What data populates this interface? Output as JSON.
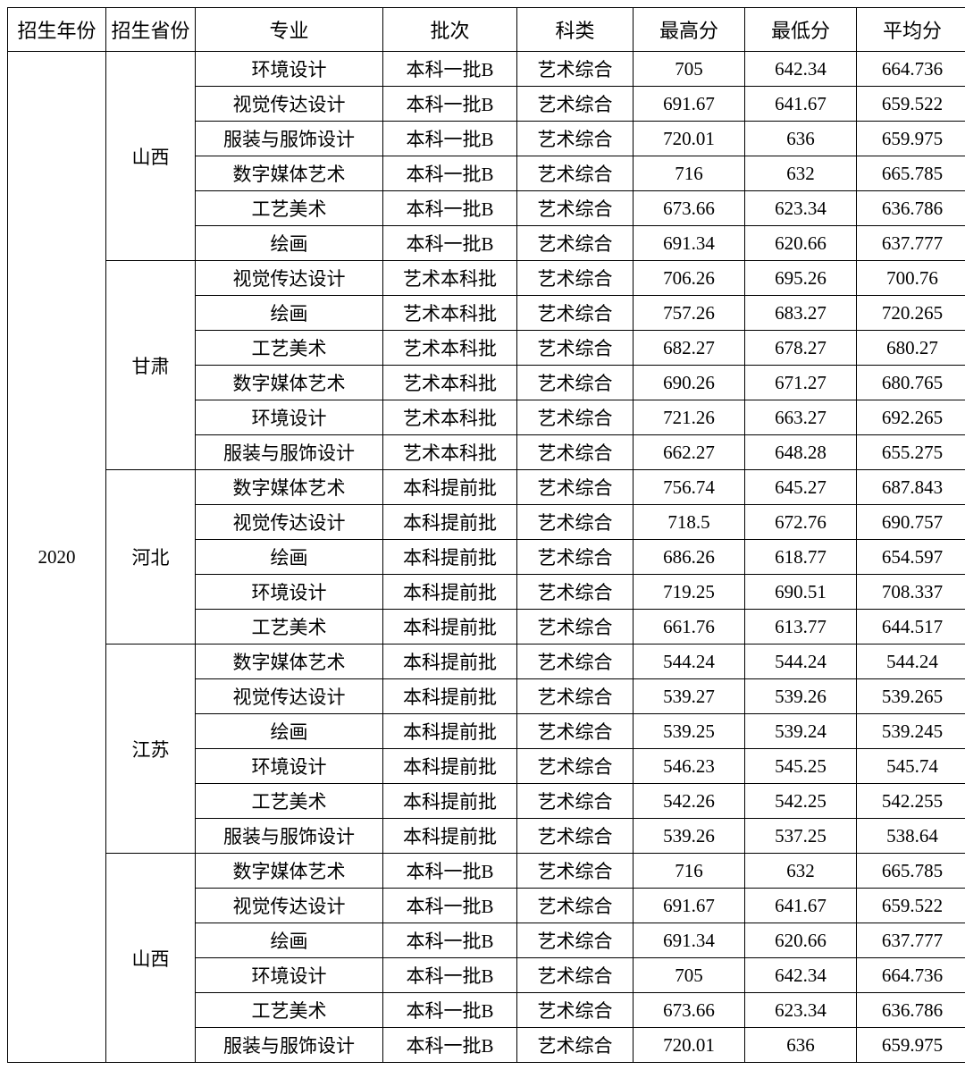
{
  "headers": {
    "year": "招生年份",
    "province": "招生省份",
    "major": "专业",
    "batch": "批次",
    "category": "科类",
    "high": "最高分",
    "low": "最低分",
    "avg": "平均分"
  },
  "year": "2020",
  "groups": [
    {
      "province": "山西",
      "rows": [
        {
          "major": "环境设计",
          "batch": "本科一批B",
          "category": "艺术综合",
          "high": "705",
          "low": "642.34",
          "avg": "664.736"
        },
        {
          "major": "视觉传达设计",
          "batch": "本科一批B",
          "category": "艺术综合",
          "high": "691.67",
          "low": "641.67",
          "avg": "659.522"
        },
        {
          "major": "服装与服饰设计",
          "batch": "本科一批B",
          "category": "艺术综合",
          "high": "720.01",
          "low": "636",
          "avg": "659.975"
        },
        {
          "major": "数字媒体艺术",
          "batch": "本科一批B",
          "category": "艺术综合",
          "high": "716",
          "low": "632",
          "avg": "665.785"
        },
        {
          "major": "工艺美术",
          "batch": "本科一批B",
          "category": "艺术综合",
          "high": "673.66",
          "low": "623.34",
          "avg": "636.786"
        },
        {
          "major": "绘画",
          "batch": "本科一批B",
          "category": "艺术综合",
          "high": "691.34",
          "low": "620.66",
          "avg": "637.777"
        }
      ]
    },
    {
      "province": "甘肃",
      "rows": [
        {
          "major": "视觉传达设计",
          "batch": "艺术本科批",
          "category": "艺术综合",
          "high": "706.26",
          "low": "695.26",
          "avg": "700.76"
        },
        {
          "major": "绘画",
          "batch": "艺术本科批",
          "category": "艺术综合",
          "high": "757.26",
          "low": "683.27",
          "avg": "720.265"
        },
        {
          "major": "工艺美术",
          "batch": "艺术本科批",
          "category": "艺术综合",
          "high": "682.27",
          "low": "678.27",
          "avg": "680.27"
        },
        {
          "major": "数字媒体艺术",
          "batch": "艺术本科批",
          "category": "艺术综合",
          "high": "690.26",
          "low": "671.27",
          "avg": "680.765"
        },
        {
          "major": "环境设计",
          "batch": "艺术本科批",
          "category": "艺术综合",
          "high": "721.26",
          "low": "663.27",
          "avg": "692.265"
        },
        {
          "major": "服装与服饰设计",
          "batch": "艺术本科批",
          "category": "艺术综合",
          "high": "662.27",
          "low": "648.28",
          "avg": "655.275"
        }
      ]
    },
    {
      "province": "河北",
      "rows": [
        {
          "major": "数字媒体艺术",
          "batch": "本科提前批",
          "category": "艺术综合",
          "high": "756.74",
          "low": "645.27",
          "avg": "687.843"
        },
        {
          "major": "视觉传达设计",
          "batch": "本科提前批",
          "category": "艺术综合",
          "high": "718.5",
          "low": "672.76",
          "avg": "690.757"
        },
        {
          "major": "绘画",
          "batch": "本科提前批",
          "category": "艺术综合",
          "high": "686.26",
          "low": "618.77",
          "avg": "654.597"
        },
        {
          "major": "环境设计",
          "batch": "本科提前批",
          "category": "艺术综合",
          "high": "719.25",
          "low": "690.51",
          "avg": "708.337"
        },
        {
          "major": "工艺美术",
          "batch": "本科提前批",
          "category": "艺术综合",
          "high": "661.76",
          "low": "613.77",
          "avg": "644.517"
        }
      ]
    },
    {
      "province": "江苏",
      "rows": [
        {
          "major": "数字媒体艺术",
          "batch": "本科提前批",
          "category": "艺术综合",
          "high": "544.24",
          "low": "544.24",
          "avg": "544.24"
        },
        {
          "major": "视觉传达设计",
          "batch": "本科提前批",
          "category": "艺术综合",
          "high": "539.27",
          "low": "539.26",
          "avg": "539.265"
        },
        {
          "major": "绘画",
          "batch": "本科提前批",
          "category": "艺术综合",
          "high": "539.25",
          "low": "539.24",
          "avg": "539.245"
        },
        {
          "major": "环境设计",
          "batch": "本科提前批",
          "category": "艺术综合",
          "high": "546.23",
          "low": "545.25",
          "avg": "545.74"
        },
        {
          "major": "工艺美术",
          "batch": "本科提前批",
          "category": "艺术综合",
          "high": "542.26",
          "low": "542.25",
          "avg": "542.255"
        },
        {
          "major": "服装与服饰设计",
          "batch": "本科提前批",
          "category": "艺术综合",
          "high": "539.26",
          "low": "537.25",
          "avg": "538.64"
        }
      ]
    },
    {
      "province": "山西",
      "rows": [
        {
          "major": "数字媒体艺术",
          "batch": "本科一批B",
          "category": "艺术综合",
          "high": "716",
          "low": "632",
          "avg": "665.785"
        },
        {
          "major": "视觉传达设计",
          "batch": "本科一批B",
          "category": "艺术综合",
          "high": "691.67",
          "low": "641.67",
          "avg": "659.522"
        },
        {
          "major": "绘画",
          "batch": "本科一批B",
          "category": "艺术综合",
          "high": "691.34",
          "low": "620.66",
          "avg": "637.777"
        },
        {
          "major": "环境设计",
          "batch": "本科一批B",
          "category": "艺术综合",
          "high": "705",
          "low": "642.34",
          "avg": "664.736"
        },
        {
          "major": "工艺美术",
          "batch": "本科一批B",
          "category": "艺术综合",
          "high": "673.66",
          "low": "623.34",
          "avg": "636.786"
        },
        {
          "major": "服装与服饰设计",
          "batch": "本科一批B",
          "category": "艺术综合",
          "high": "720.01",
          "low": "636",
          "avg": "659.975"
        }
      ]
    }
  ]
}
